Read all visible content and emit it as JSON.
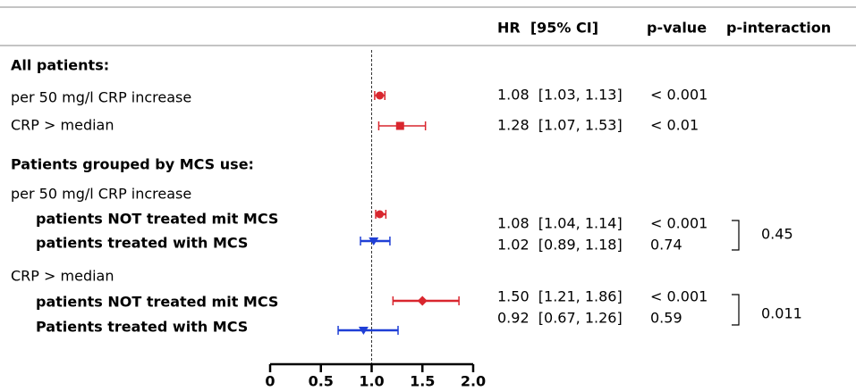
{
  "chart_data": {
    "type": "forest",
    "columns": {
      "estimate": "HR  [95% CI]",
      "p": "p-value",
      "p_interaction": "p-interaction"
    },
    "rows": [
      {
        "label": "All patients:",
        "bold": true
      },
      {
        "label": "per 50 mg/l CRP increase",
        "hr": 1.08,
        "ci_low": 1.03,
        "ci_high": 1.13,
        "estimate_label": "1.08  [1.03, 1.13]",
        "p": "< 0.001",
        "color": "#d9262e",
        "marker": "circle"
      },
      {
        "label": "CRP > median",
        "hr": 1.28,
        "ci_low": 1.07,
        "ci_high": 1.53,
        "estimate_label": "1.28  [1.07, 1.53]",
        "p": "< 0.01",
        "color": "#d9262e",
        "marker": "square"
      },
      {
        "label": "Patients grouped by MCS use:",
        "bold": true
      },
      {
        "label": "per 50 mg/l CRP increase"
      },
      {
        "label": "patients NOT treated mit MCS",
        "bold": true,
        "hr": 1.08,
        "ci_low": 1.04,
        "ci_high": 1.14,
        "estimate_label": "1.08  [1.04, 1.14]",
        "p": "< 0.001",
        "color": "#d9262e",
        "marker": "circle"
      },
      {
        "label": "patients treated with MCS",
        "bold": true,
        "hr": 1.02,
        "ci_low": 0.89,
        "ci_high": 1.18,
        "estimate_label": "1.02  [0.89, 1.18]",
        "p": "0.74",
        "color": "#1f3fd6",
        "marker": "triangle-down"
      },
      {
        "label": "CRP > median"
      },
      {
        "label": "patients NOT treated mit MCS",
        "bold": true,
        "hr": 1.5,
        "ci_low": 1.21,
        "ci_high": 1.86,
        "estimate_label": "1.50  [1.21, 1.86]",
        "p": "< 0.001",
        "color": "#d9262e",
        "marker": "diamond"
      },
      {
        "label": "Patients treated with MCS",
        "bold": true,
        "hr": 0.92,
        "ci_low": 0.67,
        "ci_high": 1.26,
        "estimate_label": "0.92  [0.67, 1.26]",
        "p": "0.59",
        "color": "#1f3fd6",
        "marker": "triangle-down"
      }
    ],
    "p_interaction": [
      0.45,
      0.011
    ],
    "reference_line": {
      "value": 1,
      "label": "1.0"
    },
    "xlim": [
      0,
      2
    ],
    "xticks": [
      0,
      0.5,
      {
        "value": 1,
        "label": "1.0"
      },
      {
        "value": 1.5,
        "label": "1.5"
      },
      {
        "value": 2,
        "label": "2.0"
      }
    ]
  }
}
